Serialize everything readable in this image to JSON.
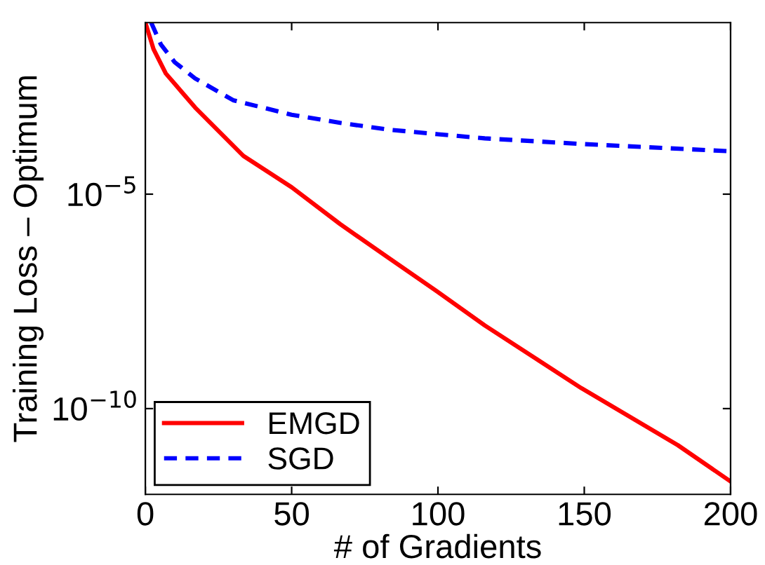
{
  "chart_data": {
    "type": "line",
    "xlabel": "# of Gradients",
    "ylabel": "Training Loss – Optimum",
    "log": "y",
    "xlim": [
      0,
      200
    ],
    "xticks": [
      0,
      50,
      100,
      150,
      200
    ],
    "ylim": [
      1e-12,
      0.1
    ],
    "yticks": [
      {
        "value": 1e-10,
        "label": "10$^{−10}$"
      },
      {
        "value": 1e-05,
        "label": "10$^{−5}$"
      }
    ],
    "legend": "bottom left",
    "grid": false,
    "series": [
      {
        "name": "EMGD",
        "color": "#ff0000",
        "line_style": "solid",
        "x": [
          0,
          2.8,
          7,
          17,
          33.5,
          50,
          66.6,
          83,
          99.7,
          116,
          149,
          182,
          200
        ],
        "values": [
          0.1,
          0.024,
          0.0065,
          0.00105,
          7.8e-05,
          1.45e-05,
          2e-06,
          3.3e-07,
          5.4e-08,
          8.7e-09,
          3e-10,
          1.4e-11,
          2e-12
        ]
      },
      {
        "name": "SGD",
        "color": "#0000ff",
        "line_style": "dashed",
        "x": [
          2,
          5.3,
          10,
          17,
          30,
          50,
          66.6,
          83,
          100,
          116,
          149,
          200
        ],
        "values": [
          0.1,
          0.031,
          0.012,
          0.005,
          0.00155,
          0.00071,
          0.00046,
          0.00032,
          0.00025,
          0.0002,
          0.000148,
          0.0001
        ]
      }
    ]
  }
}
